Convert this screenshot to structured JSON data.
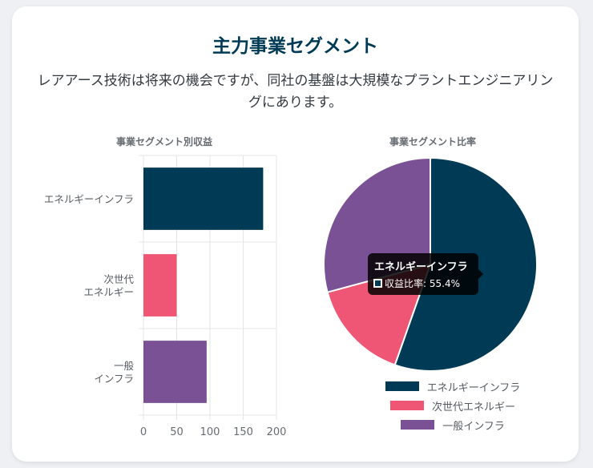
{
  "card": {
    "title": "主力事業セグメント",
    "subtitle": "レアアース技術は将来の機会ですが、同社の基盤は大規模なプラントエンジニアリングにあります。"
  },
  "colors": {
    "navy": "#003a55",
    "pink": "#ef5675",
    "purple": "#7a5195"
  },
  "chart_data": [
    {
      "type": "bar",
      "orientation": "horizontal",
      "title": "事業セグメント別収益",
      "categories": [
        "エネルギーインフラ",
        "次世代エネルギー",
        "一般インフラ"
      ],
      "category_lines": [
        [
          "エネルギーインフラ"
        ],
        [
          "次世代",
          "エネルギー"
        ],
        [
          "一般",
          "インフラ"
        ]
      ],
      "values": [
        180,
        50,
        95
      ],
      "xlim": [
        0,
        200
      ],
      "xticks": [
        "0",
        "50",
        "100",
        "150",
        "200"
      ],
      "grid": true,
      "colors": [
        "#003a55",
        "#ef5675",
        "#7a5195"
      ]
    },
    {
      "type": "pie",
      "title": "事業セグメント比率",
      "labels": [
        "エネルギーインフラ",
        "次世代エネルギー",
        "一般インフラ"
      ],
      "values": [
        55.4,
        15.4,
        29.2
      ],
      "colors": [
        "#003a55",
        "#ef5675",
        "#7a5195"
      ],
      "legend_position": "bottom",
      "tooltip": {
        "title": "エネルギーインフラ",
        "label": "収益比率: 55.4%"
      }
    }
  ]
}
